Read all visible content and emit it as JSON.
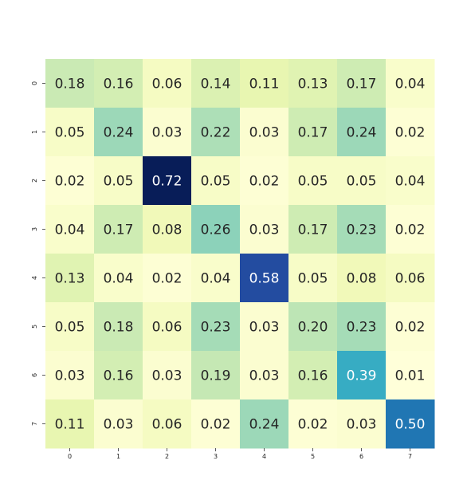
{
  "chart_data": {
    "type": "heatmap",
    "title": "",
    "xlabel": "",
    "ylabel": "",
    "x_labels": [
      "0",
      "1",
      "2",
      "3",
      "4",
      "5",
      "6",
      "7"
    ],
    "y_labels": [
      "0",
      "1",
      "2",
      "3",
      "4",
      "5",
      "6",
      "7"
    ],
    "values": [
      [
        0.18,
        0.16,
        0.06,
        0.14,
        0.11,
        0.13,
        0.17,
        0.04
      ],
      [
        0.05,
        0.24,
        0.03,
        0.22,
        0.03,
        0.17,
        0.24,
        0.02
      ],
      [
        0.02,
        0.05,
        0.72,
        0.05,
        0.02,
        0.05,
        0.05,
        0.04
      ],
      [
        0.04,
        0.17,
        0.08,
        0.26,
        0.03,
        0.17,
        0.23,
        0.02
      ],
      [
        0.13,
        0.04,
        0.02,
        0.04,
        0.58,
        0.05,
        0.08,
        0.06
      ],
      [
        0.05,
        0.18,
        0.06,
        0.23,
        0.03,
        0.2,
        0.23,
        0.02
      ],
      [
        0.03,
        0.16,
        0.03,
        0.19,
        0.03,
        0.16,
        0.39,
        0.01
      ],
      [
        0.11,
        0.03,
        0.06,
        0.02,
        0.24,
        0.02,
        0.03,
        0.5
      ]
    ],
    "colormap": "YlGnBu",
    "vmin": 0.01,
    "vmax": 0.72,
    "annotation_format": "0.00",
    "grid": false,
    "legend": "none"
  }
}
